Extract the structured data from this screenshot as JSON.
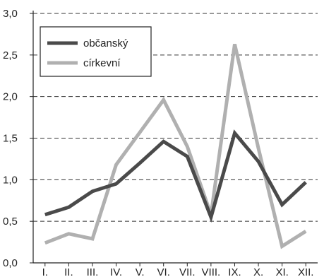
{
  "chart_data": {
    "type": "line",
    "categories": [
      "I.",
      "II.",
      "III.",
      "IV.",
      "V.",
      "VI.",
      "VII.",
      "VIII.",
      "IX.",
      "X.",
      "XI.",
      "XII."
    ],
    "ylim": [
      0,
      3
    ],
    "yticks": [
      "0,0",
      "0,5",
      "1,0",
      "1,5",
      "2,0",
      "2,5",
      "3,0"
    ],
    "grid": "horizontal-dashed",
    "legend_position": "top-left",
    "series": [
      {
        "name": "občanský",
        "color": "#4a4a4a",
        "values": [
          0.58,
          0.67,
          0.86,
          0.95,
          1.2,
          1.46,
          1.28,
          0.55,
          1.56,
          1.22,
          0.7,
          0.97
        ]
      },
      {
        "name": "církevní",
        "color": "#b0b0b0",
        "values": [
          0.24,
          0.35,
          0.29,
          1.18,
          1.57,
          1.96,
          1.4,
          0.58,
          2.63,
          1.38,
          0.2,
          0.38
        ]
      }
    ]
  }
}
